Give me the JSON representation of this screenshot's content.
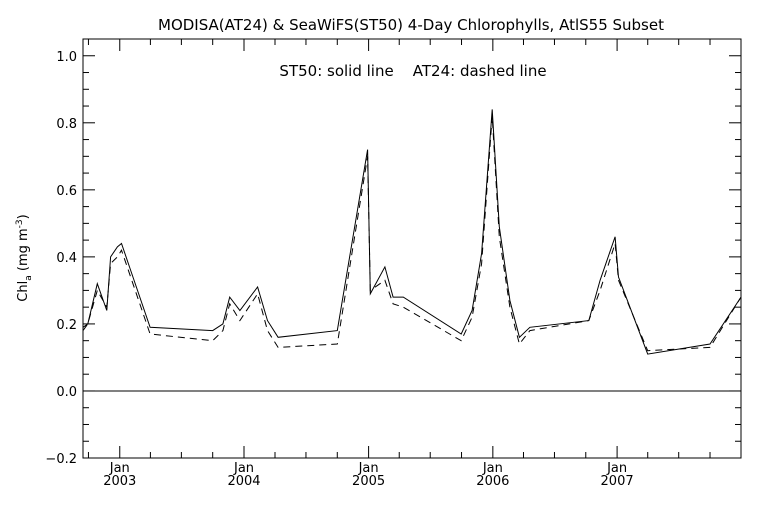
{
  "chart_data": {
    "type": "line",
    "title": "MODISA(AT24) & SeaWiFS(ST50) 4-Day Chlorophylls, AtlS55 Subset",
    "annotation": "ST50: solid line    AT24: dashed line",
    "ylabel": "Chl",
    "ylabel_sub": "a",
    "ylabel_unit": "(mg m",
    "ylabel_sup": "-3",
    "ylabel_close": ")",
    "xlabel": "",
    "xlim": [
      "2002-09-15",
      "2007-12-31"
    ],
    "ylim": [
      -0.2,
      1.05
    ],
    "yticks": [
      -0.2,
      0.0,
      0.2,
      0.4,
      0.6,
      0.8,
      1.0
    ],
    "ytick_labels": [
      "−0.2",
      "0.0",
      "0.2",
      "0.4",
      "0.6",
      "0.8",
      "1.0"
    ],
    "xticks": [
      {
        "date": "2003-01-01",
        "month": "Jan",
        "year": "2003"
      },
      {
        "date": "2004-01-01",
        "month": "Jan",
        "year": "2004"
      },
      {
        "date": "2005-01-01",
        "month": "Jan",
        "year": "2005"
      },
      {
        "date": "2006-01-01",
        "month": "Jan",
        "year": "2006"
      },
      {
        "date": "2007-01-01",
        "month": "Jan",
        "year": "2007"
      }
    ],
    "reference_line": 0.0,
    "series": [
      {
        "name": "ST50",
        "style": "solid",
        "color": "#000000",
        "points": [
          [
            "2002-09-15",
            0.19
          ],
          [
            "2002-09-29",
            0.2
          ],
          [
            "2002-10-27",
            0.32
          ],
          [
            "2002-11-24",
            0.24
          ],
          [
            "2002-12-05",
            0.4
          ],
          [
            "2002-12-25",
            0.43
          ],
          [
            "2003-01-06",
            0.44
          ],
          [
            "2003-03-31",
            0.19
          ],
          [
            "2003-10-01",
            0.18
          ],
          [
            "2003-10-31",
            0.2
          ],
          [
            "2003-11-20",
            0.28
          ],
          [
            "2003-12-20",
            0.24
          ],
          [
            "2004-02-10",
            0.31
          ],
          [
            "2004-03-10",
            0.21
          ],
          [
            "2004-04-10",
            0.16
          ],
          [
            "2004-10-01",
            0.18
          ],
          [
            "2004-12-29",
            0.72
          ],
          [
            "2005-01-06",
            0.29
          ],
          [
            "2005-02-18",
            0.37
          ],
          [
            "2005-03-14",
            0.28
          ],
          [
            "2005-04-13",
            0.28
          ],
          [
            "2005-09-30",
            0.17
          ],
          [
            "2005-11-01",
            0.24
          ],
          [
            "2005-11-29",
            0.41
          ],
          [
            "2005-12-30",
            0.84
          ],
          [
            "2006-01-20",
            0.49
          ],
          [
            "2006-02-20",
            0.27
          ],
          [
            "2006-03-20",
            0.16
          ],
          [
            "2006-04-20",
            0.19
          ],
          [
            "2006-10-10",
            0.21
          ],
          [
            "2006-11-12",
            0.33
          ],
          [
            "2006-12-26",
            0.46
          ],
          [
            "2007-01-05",
            0.34
          ],
          [
            "2007-04-01",
            0.11
          ],
          [
            "2007-10-01",
            0.14
          ],
          [
            "2007-12-31",
            0.28
          ]
        ]
      },
      {
        "name": "AT24",
        "style": "dashed",
        "color": "#000000",
        "points": [
          [
            "2002-09-15",
            0.18
          ],
          [
            "2002-09-29",
            0.2
          ],
          [
            "2002-10-27",
            0.3
          ],
          [
            "2002-11-24",
            0.25
          ],
          [
            "2002-12-05",
            0.38
          ],
          [
            "2002-12-25",
            0.4
          ],
          [
            "2003-01-06",
            0.42
          ],
          [
            "2003-03-31",
            0.17
          ],
          [
            "2003-10-01",
            0.15
          ],
          [
            "2003-10-31",
            0.18
          ],
          [
            "2003-11-20",
            0.26
          ],
          [
            "2003-12-20",
            0.21
          ],
          [
            "2004-02-10",
            0.29
          ],
          [
            "2004-03-10",
            0.18
          ],
          [
            "2004-04-10",
            0.13
          ],
          [
            "2004-10-01",
            0.14
          ],
          [
            "2004-12-29",
            0.7
          ],
          [
            "2005-01-06",
            0.3
          ],
          [
            "2005-02-18",
            0.33
          ],
          [
            "2005-03-14",
            0.26
          ],
          [
            "2005-04-13",
            0.25
          ],
          [
            "2005-09-30",
            0.15
          ],
          [
            "2005-11-01",
            0.22
          ],
          [
            "2005-11-29",
            0.38
          ],
          [
            "2005-12-30",
            0.82
          ],
          [
            "2006-01-20",
            0.46
          ],
          [
            "2006-02-20",
            0.25
          ],
          [
            "2006-03-20",
            0.14
          ],
          [
            "2006-04-20",
            0.18
          ],
          [
            "2006-10-10",
            0.21
          ],
          [
            "2006-11-12",
            0.3
          ],
          [
            "2006-12-26",
            0.44
          ],
          [
            "2007-01-05",
            0.33
          ],
          [
            "2007-04-01",
            0.12
          ],
          [
            "2007-10-01",
            0.13
          ],
          [
            "2007-12-31",
            0.28
          ]
        ]
      }
    ]
  }
}
